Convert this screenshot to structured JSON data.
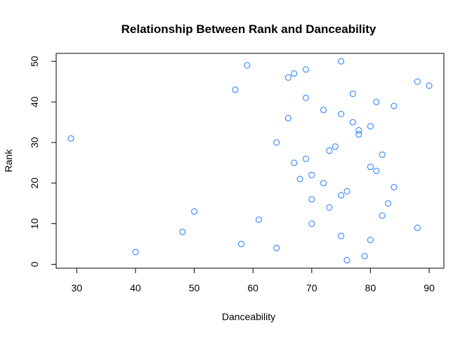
{
  "chart_data": {
    "type": "scatter",
    "title": "Relationship Between Rank and Danceability",
    "xlabel": "Danceability",
    "ylabel": "Rank",
    "xlim": [
      26.5,
      92.5
    ],
    "ylim": [
      -0.96,
      51.96
    ],
    "xticks": [
      30,
      40,
      50,
      60,
      70,
      80,
      90
    ],
    "yticks": [
      0,
      10,
      20,
      30,
      40,
      50
    ],
    "grid": false,
    "legend": "none",
    "marker": "open-circle",
    "point_color": "#1f78ff",
    "series": [
      {
        "points": [
          {
            "x": 29,
            "y": 31
          },
          {
            "x": 40,
            "y": 3
          },
          {
            "x": 48,
            "y": 8
          },
          {
            "x": 50,
            "y": 13
          },
          {
            "x": 57,
            "y": 43
          },
          {
            "x": 58,
            "y": 5
          },
          {
            "x": 59,
            "y": 49
          },
          {
            "x": 61,
            "y": 11
          },
          {
            "x": 64,
            "y": 30
          },
          {
            "x": 64,
            "y": 4
          },
          {
            "x": 66,
            "y": 46
          },
          {
            "x": 66,
            "y": 36
          },
          {
            "x": 67,
            "y": 47
          },
          {
            "x": 67,
            "y": 25
          },
          {
            "x": 68,
            "y": 21
          },
          {
            "x": 69,
            "y": 48
          },
          {
            "x": 69,
            "y": 41
          },
          {
            "x": 69,
            "y": 26
          },
          {
            "x": 70,
            "y": 22
          },
          {
            "x": 70,
            "y": 16
          },
          {
            "x": 70,
            "y": 10
          },
          {
            "x": 72,
            "y": 38
          },
          {
            "x": 72,
            "y": 20
          },
          {
            "x": 73,
            "y": 28
          },
          {
            "x": 73,
            "y": 14
          },
          {
            "x": 74,
            "y": 29
          },
          {
            "x": 75,
            "y": 50
          },
          {
            "x": 75,
            "y": 37
          },
          {
            "x": 75,
            "y": 17
          },
          {
            "x": 75,
            "y": 7
          },
          {
            "x": 76,
            "y": 18
          },
          {
            "x": 76,
            "y": 1
          },
          {
            "x": 77,
            "y": 42
          },
          {
            "x": 77,
            "y": 35
          },
          {
            "x": 78,
            "y": 33
          },
          {
            "x": 78,
            "y": 32
          },
          {
            "x": 79,
            "y": 2
          },
          {
            "x": 80,
            "y": 34
          },
          {
            "x": 80,
            "y": 24
          },
          {
            "x": 80,
            "y": 6
          },
          {
            "x": 81,
            "y": 40
          },
          {
            "x": 81,
            "y": 23
          },
          {
            "x": 82,
            "y": 27
          },
          {
            "x": 82,
            "y": 12
          },
          {
            "x": 83,
            "y": 15
          },
          {
            "x": 84,
            "y": 39
          },
          {
            "x": 84,
            "y": 19
          },
          {
            "x": 88,
            "y": 45
          },
          {
            "x": 88,
            "y": 9
          },
          {
            "x": 90,
            "y": 44
          }
        ]
      }
    ]
  }
}
